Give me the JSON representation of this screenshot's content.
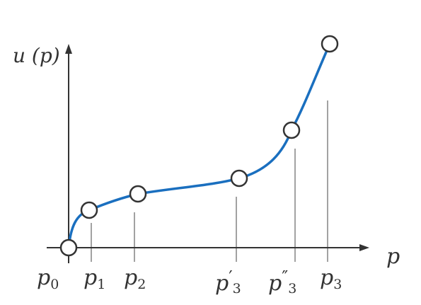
{
  "axes": {
    "y_label": "u (p)",
    "x_label": "p"
  },
  "ticks": [
    {
      "base": "p",
      "sub": "0"
    },
    {
      "base": "p",
      "sub": "1"
    },
    {
      "base": "p",
      "sub": "2"
    },
    {
      "base": "p",
      "prime": "′",
      "sub": "3"
    },
    {
      "base": "p",
      "prime": "″",
      "sub": "3"
    },
    {
      "base": "p",
      "sub": "3"
    }
  ],
  "colors": {
    "curve": "#1a6fbf",
    "axes": "#333333",
    "guides": "#444444",
    "point_fill": "#ffffff",
    "point_stroke": "#333333"
  }
}
